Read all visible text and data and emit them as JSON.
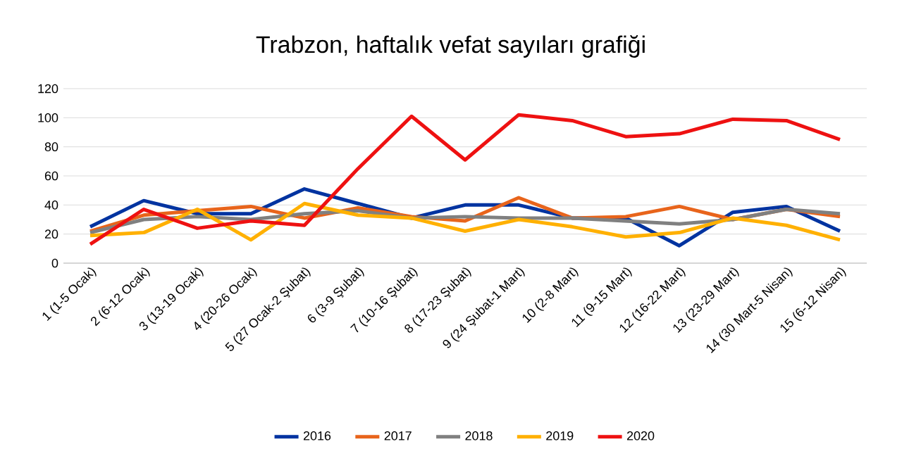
{
  "chart_data": {
    "type": "line",
    "title": "Trabzon, haftalık vefat sayıları grafiği",
    "categories": [
      "1 (1-5 Ocak)",
      "2 (6-12 Ocak)",
      "3 (13-19 Ocak)",
      "4 (20-26 Ocak)",
      "5 (27 Ocak-2 Şubat)",
      "6 (3-9 Şubat)",
      "7 (10-16 Şubat)",
      "8 (17-23 Şubat)",
      "9 (24 Şubat-1 Mart)",
      "10 (2-8 Mart)",
      "11 (9-15 Mart)",
      "12 (16-22 Mart)",
      "13 (23-29 Mart)",
      "14 (30 Mart-5 Nisan)",
      "15 (6-12 Nisan)"
    ],
    "series": [
      {
        "name": "2016",
        "color": "#0033a0",
        "values": [
          25,
          43,
          34,
          34,
          51,
          41,
          31,
          40,
          40,
          31,
          31,
          12,
          35,
          39,
          22
        ]
      },
      {
        "name": "2017",
        "color": "#e8641b",
        "values": [
          22,
          33,
          36,
          39,
          31,
          38,
          32,
          29,
          45,
          31,
          32,
          39,
          30,
          37,
          32
        ]
      },
      {
        "name": "2018",
        "color": "#808080",
        "values": [
          21,
          30,
          32,
          30,
          34,
          36,
          31,
          32,
          31,
          31,
          29,
          27,
          30,
          37,
          34
        ]
      },
      {
        "name": "2019",
        "color": "#ffb000",
        "values": [
          19,
          21,
          37,
          16,
          41,
          33,
          31,
          22,
          30,
          25,
          18,
          21,
          31,
          26,
          16
        ]
      },
      {
        "name": "2020",
        "color": "#ee1111",
        "values": [
          13,
          37,
          24,
          29,
          26,
          65,
          101,
          71,
          102,
          98,
          87,
          89,
          99,
          98,
          85
        ]
      }
    ],
    "ylim": [
      0,
      120
    ],
    "yticks": [
      0,
      20,
      40,
      60,
      80,
      100,
      120
    ],
    "grid": "y",
    "legend": "bottom",
    "marker": "none",
    "line_style": "solid"
  }
}
